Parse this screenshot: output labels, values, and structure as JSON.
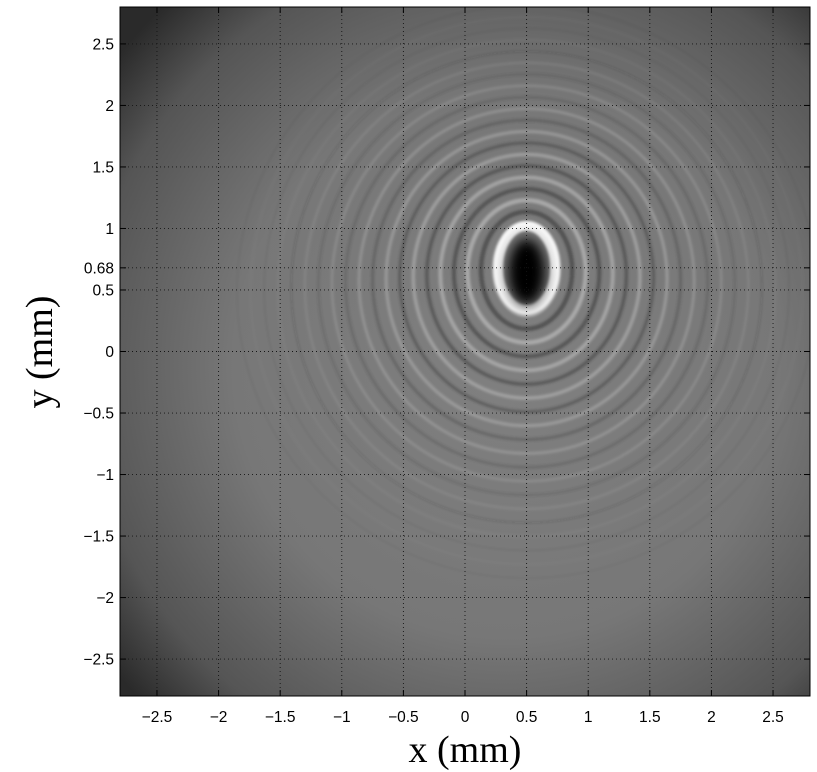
{
  "chart_data": {
    "type": "heatmap",
    "title": "",
    "xlabel": "x (mm)",
    "ylabel": "y (mm)",
    "xlim": [
      -2.8,
      2.8
    ],
    "ylim": [
      -2.8,
      2.8
    ],
    "xticks": [
      -2.5,
      -2,
      -1.5,
      -1,
      -0.5,
      0,
      0.5,
      1,
      1.5,
      2,
      2.5
    ],
    "xtick_labels": [
      "−2.5",
      "−2",
      "−1.5",
      "−1",
      "−0.5",
      "0",
      "0.5",
      "1",
      "1.5",
      "2",
      "2.5"
    ],
    "yticks": [
      2.5,
      2,
      1.5,
      1,
      0.68,
      0.5,
      0,
      -0.5,
      -1,
      -1.5,
      -2,
      -2.5
    ],
    "ytick_labels": [
      "2.5",
      "2",
      "1.5",
      "1",
      "0.68",
      "0.5",
      "0",
      "−0.5",
      "−1",
      "−1.5",
      "−2",
      "−2.5"
    ],
    "grid": true,
    "colormap": "gray",
    "pattern": {
      "description_type": "diffraction-rings",
      "center": [
        0.5,
        0.68
      ],
      "core_semi_axes": [
        0.15,
        0.27
      ],
      "ring_spacing": 0.11,
      "ring_count": 20,
      "vertical_stretch": 1.7
    }
  },
  "colors": {
    "background_gray": "#7c7c7c",
    "core_dark": "#050505",
    "ring_bright": "#ffffff",
    "grid_dot": "#141414"
  }
}
